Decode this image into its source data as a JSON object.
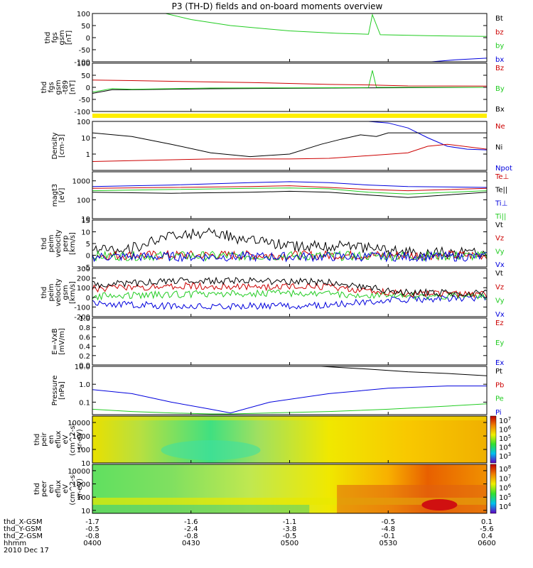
{
  "title": "P3 (TH-D) fields and on-board moments overview",
  "colors": {
    "black": "#000000",
    "red": "#cc0000",
    "green": "#22cc22",
    "blue": "#0000dd",
    "status_bar": "#ffee00"
  },
  "chart_data": [
    {
      "type": "line",
      "panel": "fgs",
      "ylabel": [
        "thd",
        "fgs",
        "gsm",
        "[nT]"
      ],
      "ylim": [
        -100,
        100
      ],
      "yticks": [
        "100",
        "50",
        "0",
        "-50",
        "-100"
      ],
      "legend": [
        {
          "label": "Bt",
          "color": "#000000"
        },
        {
          "label": "bz",
          "color": "#cc0000"
        },
        {
          "label": "by",
          "color": "#22cc22"
        },
        {
          "label": "bx",
          "color": "#0000dd"
        }
      ],
      "series": [
        {
          "name": "by",
          "x": [
            0.16,
            0.25,
            0.35,
            0.5,
            0.62,
            0.7,
            0.71,
            0.73,
            0.85,
            1.0
          ],
          "y": [
            110,
            75,
            50,
            28,
            18,
            14,
            95,
            12,
            8,
            5
          ]
        },
        {
          "name": "bx",
          "x": [
            0.86,
            0.92,
            1.0
          ],
          "y": [
            -100,
            -92,
            -85
          ]
        }
      ]
    },
    {
      "type": "line",
      "panel": "fgs-t89",
      "ylabel": [
        "thd",
        "fgs",
        "gsm",
        "-t89",
        "[nT]"
      ],
      "ylim": [
        -100,
        100
      ],
      "yticks": [
        "100",
        "50",
        "0",
        "-50",
        "-100"
      ],
      "legend": [
        {
          "label": "Bz",
          "color": "#cc0000"
        },
        {
          "label": "By",
          "color": "#22cc22"
        },
        {
          "label": "Bx",
          "color": "#000000"
        }
      ],
      "series": [
        {
          "name": "Bz",
          "x": [
            0.0,
            0.1,
            0.2,
            0.4,
            0.6,
            0.7,
            0.8,
            1.0
          ],
          "y": [
            30,
            28,
            25,
            20,
            12,
            10,
            6,
            5
          ]
        },
        {
          "name": "By",
          "x": [
            0.0,
            0.05,
            0.1,
            0.3,
            0.5,
            0.7,
            0.71,
            0.72,
            1.0
          ],
          "y": [
            -20,
            -5,
            -8,
            -3,
            -2,
            -1,
            70,
            0,
            0
          ]
        },
        {
          "name": "Bx",
          "x": [
            0.0,
            0.05,
            0.1,
            0.3,
            0.5,
            0.7,
            1.0
          ],
          "y": [
            -25,
            -10,
            -10,
            -6,
            -4,
            -2,
            0
          ]
        }
      ]
    },
    {
      "type": "line",
      "panel": "density",
      "scale": "log",
      "ylabel": [
        "Density",
        "[cm-3]"
      ],
      "ylim": [
        0.1,
        100
      ],
      "yticks": [
        "100",
        "10",
        "1"
      ],
      "legend": [
        {
          "label": "Ne",
          "color": "#cc0000"
        },
        {
          "label": "Ni",
          "color": "#000000"
        },
        {
          "label": "Npot",
          "color": "#0000dd"
        }
      ],
      "series": [
        {
          "name": "Ni",
          "x": [
            0.0,
            0.1,
            0.2,
            0.3,
            0.4,
            0.5,
            0.58,
            0.63,
            0.68,
            0.72,
            0.75,
            0.85,
            1.0
          ],
          "y": [
            20,
            12,
            4,
            1.2,
            0.7,
            1.0,
            4,
            8,
            15,
            12,
            20,
            20,
            20
          ]
        },
        {
          "name": "Ne",
          "x": [
            0.0,
            0.1,
            0.3,
            0.5,
            0.6,
            0.7,
            0.8,
            0.85,
            0.9,
            1.0
          ],
          "y": [
            0.35,
            0.4,
            0.5,
            0.5,
            0.55,
            0.8,
            1.2,
            3,
            4,
            2
          ]
        },
        {
          "name": "Npot",
          "x": [
            0.6,
            0.7,
            0.75,
            0.8,
            0.85,
            0.9,
            0.95,
            1.0
          ],
          "y": [
            150,
            100,
            80,
            40,
            10,
            3,
            2,
            1.8
          ]
        }
      ]
    },
    {
      "type": "line",
      "panel": "mag_t3",
      "scale": "log",
      "ylabel": [
        "magt3",
        "[eV]"
      ],
      "ylim": [
        10,
        3000
      ],
      "yticks": [
        "1000",
        "100",
        "10"
      ],
      "legend": [
        {
          "label": "Te⊥",
          "color": "#cc0000"
        },
        {
          "label": "Te||",
          "color": "#000000"
        },
        {
          "label": "Ti⊥",
          "color": "#0000dd"
        },
        {
          "label": "Ti||",
          "color": "#22cc22"
        }
      ],
      "series": [
        {
          "name": "Ti⊥",
          "x": [
            0.0,
            0.2,
            0.4,
            0.5,
            0.6,
            0.7,
            0.8,
            1.0
          ],
          "y": [
            500,
            600,
            800,
            900,
            800,
            600,
            500,
            450
          ]
        },
        {
          "name": "Te⊥",
          "x": [
            0.0,
            0.2,
            0.4,
            0.5,
            0.6,
            0.7,
            0.8,
            1.0
          ],
          "y": [
            400,
            450,
            500,
            550,
            450,
            350,
            300,
            400
          ]
        },
        {
          "name": "Ti||",
          "x": [
            0.0,
            0.2,
            0.4,
            0.5,
            0.6,
            0.7,
            0.8,
            1.0
          ],
          "y": [
            300,
            350,
            400,
            420,
            380,
            250,
            200,
            300
          ]
        },
        {
          "name": "Te||",
          "x": [
            0.0,
            0.2,
            0.4,
            0.5,
            0.6,
            0.7,
            0.8,
            1.0
          ],
          "y": [
            250,
            220,
            250,
            280,
            250,
            180,
            130,
            250
          ]
        }
      ]
    },
    {
      "type": "line",
      "panel": "velocity-perp",
      "ylabel": [
        "thd",
        "peim",
        "velocity",
        "perp",
        "[km/s]"
      ],
      "ylim": [
        -5,
        15
      ],
      "yticks": [
        "15",
        "10",
        "5",
        "0",
        "-5"
      ],
      "legend": [
        {
          "label": "Vt",
          "color": "#000000"
        },
        {
          "label": "Vz",
          "color": "#cc0000"
        },
        {
          "label": "Vy",
          "color": "#22cc22"
        },
        {
          "label": "Vx",
          "color": "#0000dd"
        }
      ],
      "series": [
        {
          "name": "Vt",
          "x": [
            0.0,
            0.1,
            0.2,
            0.3,
            0.4,
            0.5,
            0.6,
            0.7,
            0.8,
            1.0
          ],
          "y": [
            2,
            3,
            8,
            10,
            6,
            4,
            4,
            3,
            1,
            1
          ]
        }
      ]
    },
    {
      "type": "line",
      "panel": "velocity-gsm",
      "ylabel": [
        "thd",
        "peim",
        "velocity",
        "gsm",
        "[km/s]"
      ],
      "ylim": [
        -200,
        300
      ],
      "yticks": [
        "300",
        "200",
        "100",
        "0",
        "-100",
        "-200"
      ],
      "legend": [
        {
          "label": "Vt",
          "color": "#000000"
        },
        {
          "label": "Vz",
          "color": "#cc0000"
        },
        {
          "label": "Vy",
          "color": "#22cc22"
        },
        {
          "label": "Vx",
          "color": "#0000dd"
        }
      ],
      "series": [
        {
          "name": "Vt",
          "x": [
            0.0,
            0.2,
            0.4,
            0.6,
            0.7,
            0.8,
            1.0
          ],
          "y": [
            130,
            170,
            170,
            160,
            100,
            50,
            40
          ]
        },
        {
          "name": "Vz",
          "x": [
            0.0,
            0.2,
            0.4,
            0.6,
            0.7,
            0.8,
            1.0
          ],
          "y": [
            90,
            120,
            110,
            110,
            70,
            40,
            30
          ]
        },
        {
          "name": "Vy",
          "x": [
            0.0,
            0.2,
            0.4,
            0.6,
            0.7,
            0.8,
            1.0
          ],
          "y": [
            10,
            30,
            40,
            40,
            20,
            10,
            10
          ]
        },
        {
          "name": "Vx",
          "x": [
            0.0,
            0.2,
            0.4,
            0.6,
            0.7,
            0.8,
            1.0
          ],
          "y": [
            -60,
            -90,
            -90,
            -80,
            -40,
            -20,
            -10
          ]
        }
      ]
    },
    {
      "type": "line",
      "panel": "efield",
      "ylabel": [
        "E=-VxB",
        "[mV/m]"
      ],
      "ylim": [
        0,
        1
      ],
      "yticks": [
        "1.0",
        "0.8",
        "0.6",
        "0.4",
        "0.2",
        "0.0"
      ],
      "legend": [
        {
          "label": "Ez",
          "color": "#cc0000"
        },
        {
          "label": "Ey",
          "color": "#22cc22"
        },
        {
          "label": "Ex",
          "color": "#0000dd"
        }
      ],
      "series": []
    },
    {
      "type": "line",
      "panel": "pressure",
      "scale": "log",
      "ylabel": [
        "Pressure",
        "[nPa]"
      ],
      "ylim": [
        0.02,
        10
      ],
      "yticks": [
        "10.0",
        "1.0",
        "0.1"
      ],
      "legend": [
        {
          "label": "Pt",
          "color": "#000000"
        },
        {
          "label": "Pb",
          "color": "#cc0000"
        },
        {
          "label": "Pe",
          "color": "#22cc22"
        },
        {
          "label": "Pi",
          "color": "#0000dd"
        }
      ],
      "series": [
        {
          "name": "Pi",
          "x": [
            0.0,
            0.1,
            0.2,
            0.3,
            0.35,
            0.45,
            0.6,
            0.75,
            0.9,
            1.0
          ],
          "y": [
            0.5,
            0.3,
            0.1,
            0.04,
            0.025,
            0.1,
            0.3,
            0.6,
            0.8,
            0.8
          ]
        },
        {
          "name": "Pe",
          "x": [
            0.0,
            0.1,
            0.2,
            0.3,
            0.35,
            0.45,
            0.6,
            0.75,
            0.9,
            1.0
          ],
          "y": [
            0.04,
            0.03,
            0.025,
            0.022,
            0.022,
            0.025,
            0.03,
            0.04,
            0.06,
            0.08
          ]
        },
        {
          "name": "Pt",
          "x": [
            0.58,
            0.7,
            0.8,
            0.9,
            1.0
          ],
          "y": [
            10,
            7,
            5,
            4,
            3
          ]
        }
      ]
    },
    {
      "type": "heatmap",
      "panel": "peir-en-eflux",
      "scale": "log",
      "ylabel": [
        "thd",
        "peir",
        "en",
        "eflux",
        "eV",
        "(cm^2-s-",
        "sr-eV)"
      ],
      "ylim": [
        10,
        30000
      ],
      "yticks": [
        "10000",
        "1000",
        "100",
        "10"
      ],
      "colorbar_labels": [
        "10^7",
        "10^6",
        "10^5",
        "10^4",
        "10^3"
      ]
    },
    {
      "type": "heatmap",
      "panel": "peer-en-eflux",
      "scale": "log",
      "ylabel": [
        "thd",
        "peer",
        "en",
        "eflux",
        "eV",
        "(cm^2-s-",
        "sr-eV)"
      ],
      "ylim": [
        6,
        30000
      ],
      "yticks": [
        "10000",
        "1000",
        "100",
        "10"
      ],
      "colorbar_labels": [
        "10^8",
        "10^7",
        "10^6",
        "10^5",
        "10^4"
      ]
    }
  ],
  "x_axis": {
    "row_labels": [
      "thd_X-GSM",
      "thd_Y-GSM",
      "thd_Z-GSM",
      "hhmm",
      "2010 Dec 17"
    ],
    "ticks": [
      {
        "x": 0.0,
        "values": [
          "-1.7",
          "-0.5",
          "-0.8",
          "0400"
        ]
      },
      {
        "x": 0.25,
        "values": [
          "-1.6",
          "-2.4",
          "-0.8",
          "0430"
        ]
      },
      {
        "x": 0.5,
        "values": [
          "-1.1",
          "-3.8",
          "-0.5",
          "0500"
        ]
      },
      {
        "x": 0.75,
        "values": [
          "-0.5",
          "-4.8",
          "-0.1",
          "0530"
        ]
      },
      {
        "x": 1.0,
        "values": [
          "0.1",
          "-5.6",
          "0.4",
          "0600"
        ]
      }
    ]
  }
}
